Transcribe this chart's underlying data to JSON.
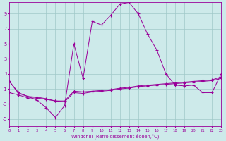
{
  "x": [
    0,
    1,
    2,
    3,
    4,
    5,
    6,
    7,
    8,
    9,
    10,
    11,
    12,
    13,
    14,
    15,
    16,
    17,
    18,
    19,
    20,
    21,
    22,
    23
  ],
  "temperature": [
    0.0,
    -1.5,
    -2.0,
    -2.5,
    -3.5,
    -4.8,
    -3.2,
    5.0,
    0.4,
    8.0,
    7.5,
    8.8,
    10.3,
    10.5,
    9.0,
    6.3,
    4.2,
    1.0,
    -0.5,
    -0.6,
    -0.5,
    -1.5,
    -1.5,
    1.0
  ],
  "windchill1": [
    0.0,
    -1.6,
    -2.0,
    -2.1,
    -2.3,
    -2.6,
    -2.6,
    -1.3,
    -1.4,
    -1.3,
    -1.2,
    -1.1,
    -0.9,
    -0.8,
    -0.6,
    -0.5,
    -0.4,
    -0.3,
    -0.2,
    -0.1,
    -0.0,
    0.1,
    0.2,
    0.6
  ],
  "windchill2": [
    -1.5,
    -1.8,
    -2.2,
    -2.2,
    -2.4,
    -2.6,
    -2.7,
    -1.5,
    -1.6,
    -1.4,
    -1.3,
    -1.2,
    -1.0,
    -0.9,
    -0.7,
    -0.6,
    -0.5,
    -0.4,
    -0.3,
    -0.2,
    -0.1,
    0.0,
    0.1,
    0.4
  ],
  "bg_color": "#cdeaea",
  "grid_color": "#a0c8c8",
  "line_color": "#990099",
  "ylabel_vals": [
    9,
    7,
    5,
    3,
    1,
    -1,
    -3,
    -5
  ],
  "xlabel_vals": [
    0,
    1,
    2,
    3,
    4,
    5,
    6,
    7,
    8,
    9,
    10,
    11,
    12,
    13,
    14,
    15,
    16,
    17,
    18,
    19,
    20,
    21,
    22,
    23
  ],
  "xlabel": "Windchill (Refroidissement éolien,°C)",
  "ylim": [
    -6.0,
    10.5
  ],
  "xlim": [
    0,
    23
  ]
}
